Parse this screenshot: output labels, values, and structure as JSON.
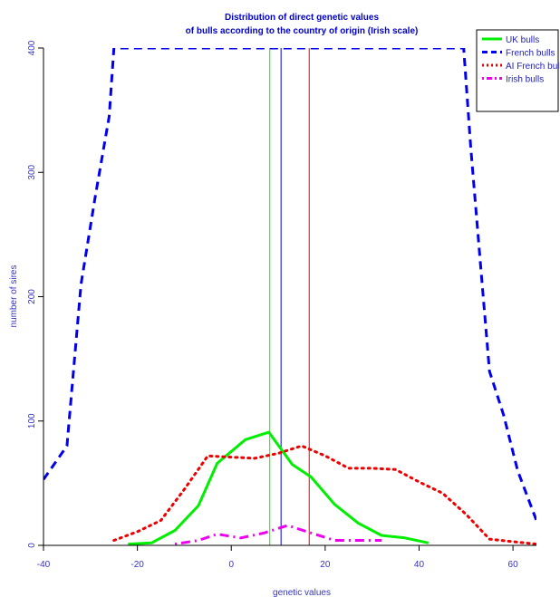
{
  "chart_data": {
    "type": "line",
    "title_line1": "Distribution of direct genetic values",
    "title_line2": "of bulls according to the country of origin (Irish scale)",
    "xlabel": "genetic values",
    "ylabel": "number of sires",
    "xlim": [
      -40,
      65
    ],
    "ylim": [
      0,
      400
    ],
    "x_ticks": [
      "-40",
      "-20",
      "0",
      "20",
      "40",
      "60"
    ],
    "x_tick_values": [
      -40,
      -20,
      0,
      20,
      40,
      60
    ],
    "y_ticks": [
      "0",
      "100",
      "200",
      "300",
      "400"
    ],
    "y_tick_values": [
      0,
      100,
      200,
      300,
      400
    ],
    "legend_position": "top-right",
    "series": [
      {
        "name": "UK bulls",
        "color": "#00ee00",
        "style": "solid",
        "points": [
          [
            -22,
            1
          ],
          [
            -17,
            2
          ],
          [
            -12,
            12
          ],
          [
            -7,
            32
          ],
          [
            -3,
            66
          ],
          [
            3,
            85
          ],
          [
            8,
            91
          ],
          [
            13,
            65
          ],
          [
            17,
            55
          ],
          [
            22,
            33
          ],
          [
            27,
            18
          ],
          [
            32,
            8
          ],
          [
            37,
            6
          ],
          [
            42,
            2
          ]
        ]
      },
      {
        "name": "French bulls",
        "color": "#0000ee",
        "style": "dashed",
        "points": [
          [
            -40,
            53
          ],
          [
            -35,
            80
          ],
          [
            -32,
            210
          ],
          [
            -29,
            280
          ],
          [
            -26,
            345
          ],
          [
            -25,
            400
          ],
          [
            49.5,
            400
          ],
          [
            51,
            320
          ],
          [
            53,
            230
          ],
          [
            55,
            140
          ],
          [
            58,
            105
          ],
          [
            61,
            60
          ],
          [
            65,
            20
          ]
        ]
      },
      {
        "name": "AI French bulls",
        "color": "#ee0000",
        "style": "dotted",
        "points": [
          [
            -25,
            4
          ],
          [
            -20,
            11
          ],
          [
            -15,
            20
          ],
          [
            -10,
            45
          ],
          [
            -5,
            72
          ],
          [
            0,
            71
          ],
          [
            5,
            70
          ],
          [
            10,
            74
          ],
          [
            15,
            80
          ],
          [
            20,
            72
          ],
          [
            25,
            62
          ],
          [
            30,
            62
          ],
          [
            35,
            61
          ],
          [
            40,
            51
          ],
          [
            45,
            42
          ],
          [
            50,
            25
          ],
          [
            55,
            5
          ],
          [
            60,
            3
          ],
          [
            65,
            1
          ]
        ]
      },
      {
        "name": "Irish bulls",
        "color": "#ee00ee",
        "style": "dotdash",
        "points": [
          [
            -12,
            1
          ],
          [
            -7,
            4
          ],
          [
            -3,
            9
          ],
          [
            2,
            6
          ],
          [
            7,
            10
          ],
          [
            12,
            16
          ],
          [
            17,
            10
          ],
          [
            22,
            4
          ],
          [
            27,
            4
          ],
          [
            32,
            4
          ]
        ]
      }
    ],
    "vertical_lines": [
      {
        "x": 8.2,
        "color": "#00ee00"
      },
      {
        "x": 10.6,
        "color": "#0000ee"
      },
      {
        "x": 16.6,
        "color": "#ee0000"
      }
    ]
  }
}
